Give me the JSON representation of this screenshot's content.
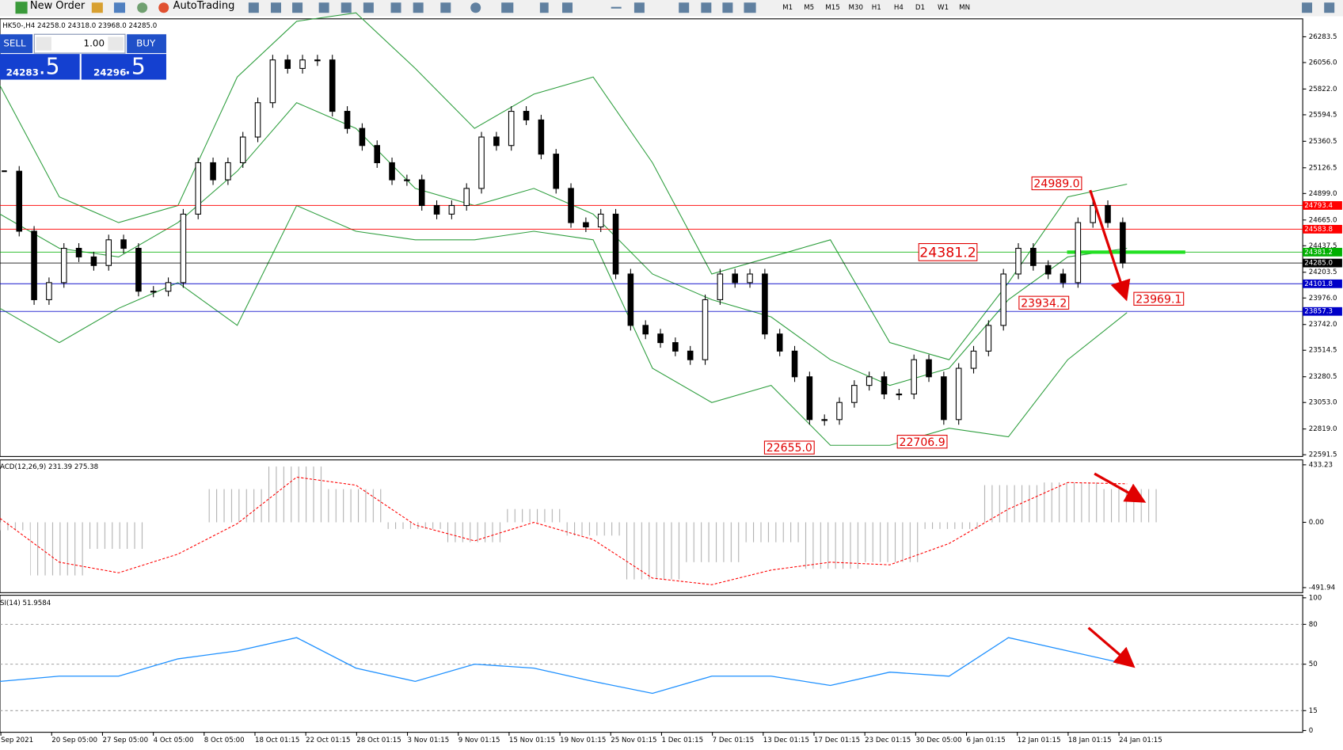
{
  "toolbar": {
    "new_order": "New Order",
    "auto_trading": "AutoTrading",
    "timeframes": [
      "M1",
      "M5",
      "M15",
      "M30",
      "H1",
      "H4",
      "D1",
      "W1",
      "MN"
    ]
  },
  "trade_panel": {
    "sell": "SELL",
    "lot": "1.00",
    "buy": "BUY",
    "bid_big": "24283",
    "bid_small": ".5",
    "ask_big": "24296",
    "ask_small": ".5"
  },
  "chart_data": [
    {
      "type": "candlestick",
      "title": "HK50-,H4 24258.0 24318.0 23968.0 24285.0",
      "closes": [
        25096,
        24566,
        23961,
        24112,
        24415,
        24339,
        24263,
        24490,
        24415,
        24036,
        24036,
        24112,
        24717,
        25171,
        25020,
        25171,
        25398,
        25701,
        26079,
        26004,
        26079,
        26079,
        25625,
        25474,
        25323,
        25171,
        25020,
        25020,
        24793,
        24717,
        24793,
        24944,
        25398,
        25323,
        25625,
        25549,
        25247,
        24944,
        24642,
        24604,
        24717,
        24188,
        23734,
        23658,
        23582,
        23507,
        23431,
        23961,
        24188,
        24112,
        24188,
        23658,
        23507,
        23280,
        22902,
        22902,
        23053,
        23204,
        23280,
        23128,
        23128,
        23431,
        23280,
        22902,
        23355,
        23507,
        23734,
        24188,
        24415,
        24263,
        24188,
        24112,
        24642,
        24793,
        24642,
        24285
      ],
      "bands": {
        "color": "#2e9e3e",
        "upper": [
          25852,
          24869,
          24642,
          24793,
          25928,
          26420,
          26495,
          26004,
          25474,
          25777,
          25928,
          25171,
          24188,
          24339,
          24490,
          23582,
          23431,
          24112,
          24869,
          24982
        ],
        "middle": [
          24717,
          24415,
          24339,
          24642,
          25096,
          25701,
          25474,
          24944,
          24793,
          24944,
          24717,
          24188,
          23961,
          23809,
          23431,
          23204,
          23355,
          23961,
          24339,
          24415
        ],
        "lower": [
          23885,
          23582,
          23885,
          24112,
          23734,
          24793,
          24566,
          24490,
          24490,
          24566,
          24490,
          23355,
          23053,
          23204,
          22675,
          22675,
          22826,
          22750,
          23431,
          23847
        ]
      },
      "ylim": [
        22576,
        26442
      ],
      "yticks": [
        26283.5,
        {
          "value": 26056,
          "label": "26056.0"
        },
        {
          "value": 25822,
          "label": "25822.0"
        },
        25594.5,
        25360.5,
        25126.5,
        {
          "value": 24899,
          "label": "24899.0"
        },
        {
          "value": 24665,
          "label": "24665.0"
        },
        24437.5,
        24203.5,
        {
          "value": 23976,
          "label": "23976.0"
        },
        {
          "value": 23742,
          "label": "23742.0"
        },
        23514.5,
        23280.5,
        {
          "value": 23053,
          "label": "23053.0"
        },
        {
          "value": 22819,
          "label": "22819.0"
        },
        22591.5
      ],
      "levels": {
        "values": [
          24793.4,
          24583.8,
          24381.2,
          24285,
          24101.8,
          23857.3
        ],
        "value_labels": [
          "24793.4",
          "24583.8",
          "24381.2",
          "24285.0",
          "24101.8",
          "23857.3"
        ],
        "colors": [
          "#ff0000",
          "#ff0000",
          "#00b000",
          "#000000",
          "#0000c8",
          "#0000c8"
        ]
      },
      "annotations": {
        "values": [
          24989,
          24381.2,
          23934.2,
          23969.1,
          22655,
          22706.9
        ],
        "value_labels": [
          "24989.0",
          "24381.2",
          "23934.2",
          "23969.1",
          "22655.0",
          "22706.9"
        ]
      },
      "x_labels": [
        "Sep 2021",
        "20 Sep 05:00",
        "27 Sep 05:00",
        "4 Oct 05:00",
        "8 Oct 05:00",
        "18 Oct 01:15",
        "22 Oct 01:15",
        "28 Oct 01:15",
        "3 Nov 01:15",
        "9 Nov 01:15",
        "15 Nov 01:15",
        "19 Nov 01:15",
        "25 Nov 01:15",
        "1 Dec 01:15",
        "7 Dec 01:15",
        "13 Dec 01:15",
        "17 Dec 01:15",
        "23 Dec 01:15",
        "30 Dec 05:00",
        "6 Jan 01:15",
        "12 Jan 01:15",
        "18 Jan 01:15",
        "24 Jan 01:15"
      ]
    },
    {
      "type": "macd",
      "title": "ACD(12,26,9) 231.39 275.38",
      "histogram": [
        -60,
        -400,
        -200,
        0,
        250,
        420,
        250,
        -50,
        -150,
        100,
        -100,
        -430,
        -300,
        -150,
        -350,
        -300,
        -50,
        280,
        300,
        250
      ],
      "signal": [
        30,
        -300,
        -380,
        -240,
        -10,
        340,
        280,
        -20,
        -140,
        0,
        -130,
        -420,
        -470,
        -360,
        -300,
        -320,
        -160,
        100,
        300,
        290
      ],
      "hist_color": "#b0b0b0",
      "signal_color": "#ff0000",
      "ylim": [
        -530,
        470
      ],
      "yticks": [
        433.23,
        {
          "value": 0,
          "label": "0.00"
        },
        -491.94
      ]
    },
    {
      "type": "rsi",
      "title": "SI(14) 51.9584",
      "values": [
        37,
        41,
        41,
        54,
        60,
        70,
        47,
        37,
        50,
        47,
        37,
        28,
        41,
        41,
        34,
        44,
        41,
        70,
        60,
        50
      ],
      "color": "#1e90ff",
      "ylim": [
        0,
        100
      ],
      "yticks": [
        100,
        80,
        50,
        15,
        0
      ],
      "levels": [
        80,
        50,
        15
      ]
    }
  ]
}
